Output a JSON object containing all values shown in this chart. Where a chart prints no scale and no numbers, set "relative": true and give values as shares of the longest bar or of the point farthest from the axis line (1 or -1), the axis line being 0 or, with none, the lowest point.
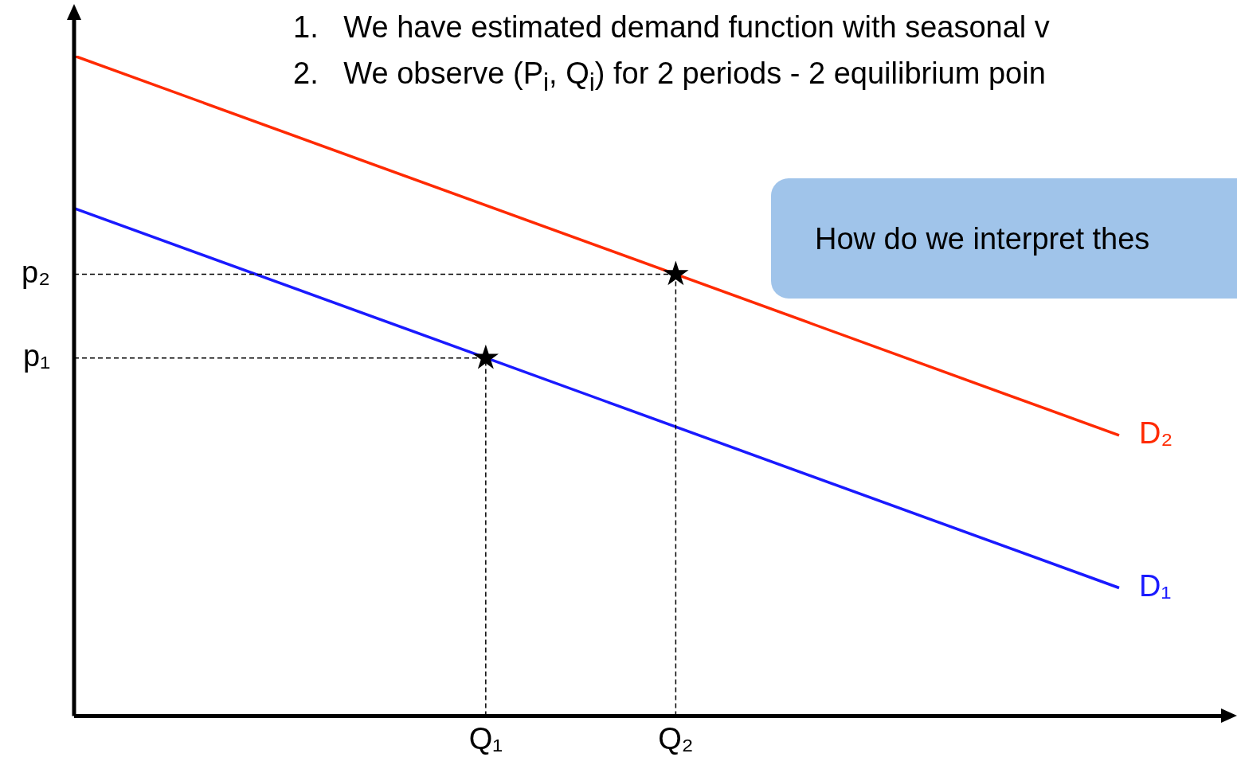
{
  "chart_data": {
    "type": "line",
    "relative": true,
    "categories": [
      null,
      null,
      null,
      null,
      null,
      null,
      null,
      null,
      null,
      null,
      null,
      null,
      null,
      "Q₁",
      null,
      null,
      null,
      null,
      null,
      "Q₂",
      null,
      null,
      null,
      null,
      null,
      null,
      null,
      null,
      null,
      null,
      null,
      null,
      null,
      null
    ],
    "series": [
      {
        "name": "D₂",
        "color": "#ff2a00",
        "values": [
          1,
          null,
          null,
          null,
          null,
          null,
          null,
          null,
          null,
          null,
          null,
          null,
          null,
          null,
          null,
          null,
          null,
          null,
          null,
          null,
          null,
          null,
          null,
          null,
          null,
          null,
          null,
          null,
          null,
          null,
          null,
          null,
          null,
          0.425
        ]
      },
      {
        "name": "D₁",
        "color": "#1a1aff",
        "values": [
          0.769,
          null,
          null,
          null,
          null,
          null,
          null,
          null,
          null,
          null,
          null,
          null,
          null,
          null,
          null,
          null,
          null,
          null,
          null,
          null,
          null,
          null,
          null,
          null,
          null,
          null,
          null,
          null,
          null,
          null,
          null,
          null,
          null,
          0.194
        ]
      },
      {
        "type": "scatter",
        "marker": "star",
        "color": "#000000",
        "x": [
          "Q₁",
          "Q₂"
        ],
        "values": [
          0.542,
          0.669
        ]
      }
    ],
    "annotations": [
      "1.   We have estimated demand function with seasonal v",
      "2.   We observe (P$_{i}$, Q$_{i}$) for 2 periods - 2 equilibrium poin",
      "How do we interpret thes",
      {
        "text": "p₁",
        "x": "Q₁",
        "y": 0.542
      },
      {
        "text": "p₂",
        "x": "Q₂",
        "y": 0.669
      }
    ]
  }
}
